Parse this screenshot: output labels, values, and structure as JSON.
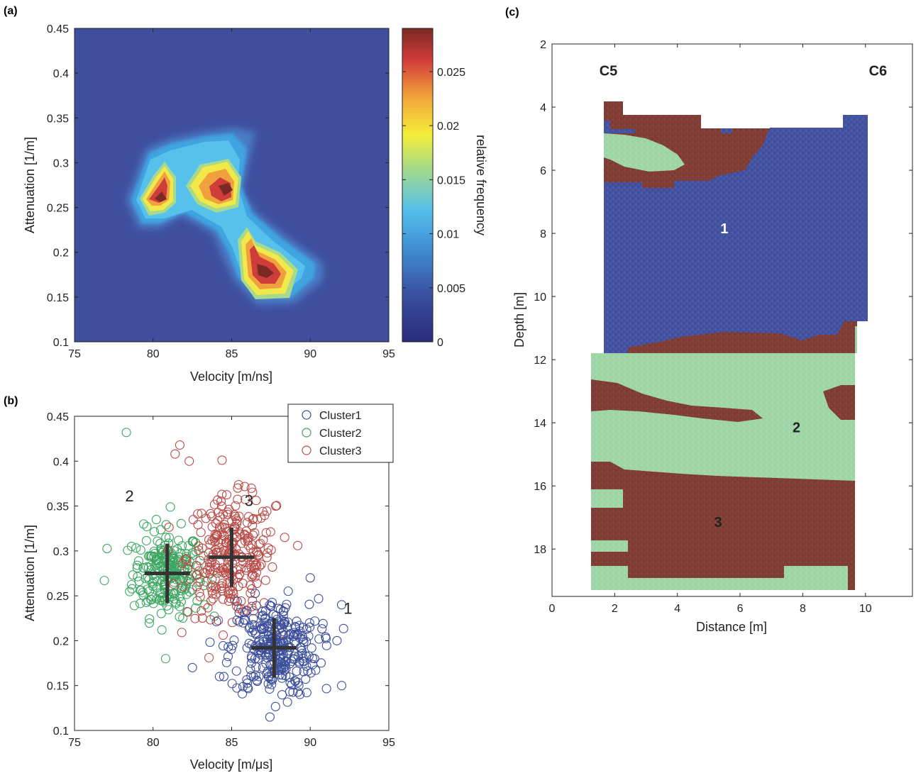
{
  "panel_labels": {
    "a": "(a)",
    "b": "(b)",
    "c": "(c)"
  },
  "colors": {
    "cluster1": "#3b4e9b",
    "cluster2": "#3aa660",
    "cluster3": "#b84a46",
    "section_blue": "#3f4f9e",
    "section_green": "#9bd3a3",
    "section_brown": "#7d3a32",
    "background_density": "#3f4f9e"
  },
  "chart_data": [
    {
      "id": "a",
      "type": "heatmap",
      "xlabel": "Velocity [m/ns]",
      "ylabel": "Attenuation [1/m]",
      "colorbar_label": "relative frequency",
      "xlim": [
        75,
        95
      ],
      "ylim": [
        0.1,
        0.45
      ],
      "xticks": [
        "75",
        "80",
        "85",
        "90",
        "95"
      ],
      "yticks": [
        "0.1",
        "0.15",
        "0.2",
        "0.25",
        "0.3",
        "0.35",
        "0.4",
        "0.45"
      ],
      "clim": [
        0,
        0.029
      ],
      "colorbar_ticks": [
        "0",
        "0.005",
        "0.01",
        "0.015",
        "0.02",
        "0.025"
      ],
      "peaks": [
        {
          "x": 80.5,
          "y": 0.257,
          "value": 0.029
        },
        {
          "x": 84.8,
          "y": 0.275,
          "value": 0.027
        },
        {
          "x": 87.2,
          "y": 0.178,
          "value": 0.029
        }
      ]
    },
    {
      "id": "b",
      "type": "scatter",
      "xlabel": "Velocity [m/μs]",
      "ylabel": "Attenuation [1/m]",
      "xlim": [
        75,
        95
      ],
      "ylim": [
        0.1,
        0.45
      ],
      "xticks": [
        "75",
        "80",
        "85",
        "90",
        "95"
      ],
      "yticks": [
        "0.1",
        "0.15",
        "0.2",
        "0.25",
        "0.3",
        "0.35",
        "0.4",
        "0.45"
      ],
      "series": [
        {
          "name": "Cluster1",
          "center": [
            87.7,
            0.192
          ],
          "spread": [
            1.4,
            0.027
          ],
          "count": 300,
          "outliers": [
            [
              92,
              0.15
            ],
            [
              91.7,
              0.2
            ],
            [
              82.5,
              0.17
            ],
            [
              90,
              0.27
            ],
            [
              92,
              0.24
            ],
            [
              84.5,
              0.16
            ]
          ]
        },
        {
          "name": "Cluster2",
          "center": [
            80.9,
            0.275
          ],
          "spread": [
            1.1,
            0.024
          ],
          "count": 230,
          "outliers": [
            [
              78.3,
              0.432
            ],
            [
              76.9,
              0.267
            ],
            [
              80.8,
              0.18
            ],
            [
              81.1,
              0.349
            ],
            [
              79.4,
              0.33
            ],
            [
              83.3,
              0.24
            ]
          ]
        },
        {
          "name": "Cluster3",
          "center": [
            85.0,
            0.293
          ],
          "spread": [
            1.4,
            0.033
          ],
          "count": 280,
          "outliers": [
            [
              81.7,
              0.418
            ],
            [
              81.4,
              0.408
            ],
            [
              89.2,
              0.306
            ],
            [
              87.8,
              0.35
            ],
            [
              82.3,
              0.4
            ]
          ]
        }
      ],
      "centroids": [
        [
          87.7,
          0.192
        ],
        [
          80.9,
          0.275
        ],
        [
          85.0,
          0.293
        ]
      ],
      "annotations": [
        {
          "text": "1",
          "x": 92.4,
          "y": 0.23
        },
        {
          "text": "2",
          "x": 78.5,
          "y": 0.355
        },
        {
          "text": "3",
          "x": 86.1,
          "y": 0.35
        }
      ]
    },
    {
      "id": "c",
      "type": "heatmap",
      "xlabel": "Distance [m]",
      "ylabel": "Depth [m]",
      "xlim": [
        0,
        11.5
      ],
      "ylim": [
        2,
        19.5
      ],
      "xticks": [
        "0",
        "2",
        "4",
        "6",
        "8",
        "10"
      ],
      "yticks": [
        "2",
        "4",
        "6",
        "8",
        "10",
        "12",
        "14",
        "16",
        "18"
      ],
      "borehole_labels": [
        {
          "text": "C5",
          "x": 1.8,
          "y": 3.0
        },
        {
          "text": "C6",
          "x": 10.4,
          "y": 3.0
        }
      ],
      "zone_labels": [
        {
          "text": "1",
          "x": 5.5,
          "y": 8.0,
          "color": "#ffffff"
        },
        {
          "text": "2",
          "x": 7.8,
          "y": 14.3,
          "color": "#222222"
        },
        {
          "text": "3",
          "x": 5.3,
          "y": 17.3,
          "color": "#222222"
        }
      ],
      "legend_classes": [
        {
          "class": 1,
          "color": "#3f4f9e"
        },
        {
          "class": 2,
          "color": "#9bd3a3"
        },
        {
          "class": 3,
          "color": "#7d3a32"
        }
      ]
    }
  ]
}
